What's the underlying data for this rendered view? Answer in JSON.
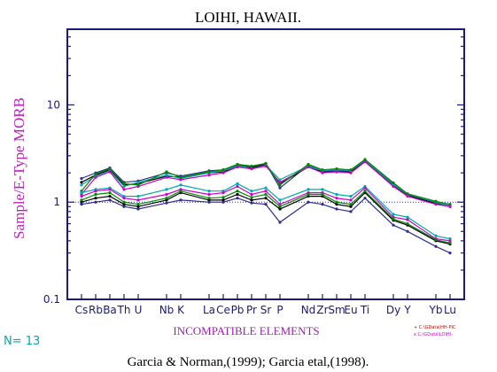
{
  "chart_data": {
    "type": "line",
    "title": "LOIHI, HAWAII.",
    "ylabel": "Sample/E-Type MORB",
    "xlabel": "INCOMPATIBLE ELEMENTS",
    "yscale": "log",
    "ylim": [
      0.1,
      60
    ],
    "yticks": [
      {
        "value": 0.1,
        "label": "0.1"
      },
      {
        "value": 1,
        "label": "1"
      },
      {
        "value": 10,
        "label": "10"
      }
    ],
    "reference_line": {
      "value": 1,
      "style": "dotted"
    },
    "categories": [
      "Cs",
      "Rb",
      "Ba",
      "Th",
      "U",
      "Nb",
      "K",
      "La",
      "Ce",
      "Pb",
      "Pr",
      "Sr",
      "P",
      "Nd",
      "Zr",
      "Sm",
      "Eu",
      "Ti",
      "Dy",
      "Y",
      "Yb",
      "Lu"
    ],
    "x_positions": [
      1,
      2,
      3,
      4,
      5,
      7,
      8,
      10,
      11,
      12,
      13,
      14,
      15,
      17,
      18,
      19,
      20,
      21,
      23,
      24,
      26,
      27
    ],
    "n_label": "N= 13",
    "legend": [
      {
        "text": "+ C:\\GData\\HH-PIC",
        "color": "#cc0000"
      },
      {
        "text": "x C:\\GData\\LOIHI-",
        "color": "#cc00cc"
      }
    ],
    "source": "Garcia & Norman,(1999); Garcia etal,(1998).",
    "series": [
      {
        "color": "#2e2e8a",
        "values": [
          1.75,
          2.0,
          2.25,
          1.6,
          1.65,
          2.0,
          1.85,
          2.1,
          2.15,
          2.4,
          2.3,
          2.5,
          1.4,
          2.4,
          2.1,
          2.1,
          2.1,
          2.7,
          1.55,
          1.2,
          0.98,
          0.93
        ]
      },
      {
        "color": "#000000",
        "values": [
          1.6,
          1.9,
          2.15,
          1.5,
          1.55,
          1.85,
          1.8,
          2.0,
          2.05,
          2.3,
          2.25,
          2.45,
          1.55,
          2.3,
          2.05,
          2.05,
          2.05,
          2.65,
          1.5,
          1.18,
          0.96,
          0.9
        ]
      },
      {
        "color": "#00aaaa",
        "values": [
          1.5,
          1.85,
          2.1,
          1.45,
          1.6,
          1.9,
          1.75,
          2.0,
          2.1,
          2.35,
          2.2,
          2.4,
          1.7,
          2.35,
          2.1,
          2.15,
          2.1,
          2.7,
          1.52,
          1.2,
          1.0,
          0.92
        ]
      },
      {
        "color": "#cc00cc",
        "values": [
          1.2,
          1.8,
          2.05,
          1.35,
          1.45,
          1.8,
          1.7,
          1.9,
          2.0,
          2.3,
          2.2,
          2.35,
          1.6,
          2.3,
          2.0,
          2.05,
          2.0,
          2.6,
          1.45,
          1.15,
          0.95,
          0.9
        ]
      },
      {
        "color": "#008800",
        "values": [
          1.3,
          1.95,
          2.2,
          1.55,
          1.5,
          2.05,
          1.8,
          2.05,
          2.15,
          2.45,
          2.35,
          2.5,
          1.5,
          2.45,
          2.15,
          2.2,
          2.15,
          2.75,
          1.58,
          1.22,
          1.02,
          0.95
        ]
      },
      {
        "color": "#00aaaa",
        "values": [
          1.25,
          1.35,
          1.4,
          1.15,
          1.15,
          1.35,
          1.5,
          1.3,
          1.3,
          1.55,
          1.3,
          1.4,
          1.05,
          1.35,
          1.35,
          1.2,
          1.15,
          1.45,
          0.75,
          0.7,
          0.45,
          0.42
        ]
      },
      {
        "color": "#cc00cc",
        "values": [
          1.15,
          1.3,
          1.35,
          1.1,
          1.05,
          1.2,
          1.35,
          1.2,
          1.25,
          1.45,
          1.2,
          1.3,
          0.95,
          1.25,
          1.25,
          1.1,
          1.05,
          1.4,
          0.7,
          0.66,
          0.42,
          0.4
        ]
      },
      {
        "color": "#000000",
        "values": [
          1.0,
          1.1,
          1.15,
          0.95,
          0.9,
          1.05,
          1.25,
          1.05,
          1.05,
          1.2,
          1.05,
          1.1,
          0.85,
          1.15,
          1.15,
          0.95,
          0.9,
          1.25,
          0.65,
          0.58,
          0.4,
          0.37
        ]
      },
      {
        "color": "#2e2e8a",
        "values": [
          0.95,
          1.0,
          1.05,
          0.9,
          0.85,
          0.98,
          1.05,
          1.0,
          1.0,
          1.1,
          0.98,
          0.95,
          0.62,
          1.0,
          0.95,
          0.85,
          0.8,
          1.1,
          0.58,
          0.5,
          0.35,
          0.3
        ]
      },
      {
        "color": "#008800",
        "values": [
          1.05,
          1.2,
          1.25,
          1.0,
          0.95,
          1.1,
          1.3,
          1.1,
          1.12,
          1.3,
          1.12,
          1.2,
          0.9,
          1.2,
          1.2,
          1.0,
          0.95,
          1.3,
          0.67,
          0.6,
          0.41,
          0.38
        ]
      }
    ]
  }
}
